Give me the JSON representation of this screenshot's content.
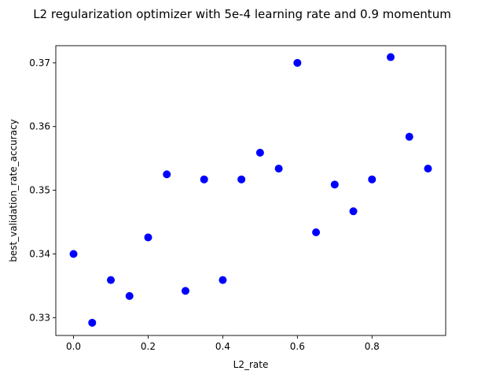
{
  "chart_data": {
    "type": "scatter",
    "title": "L2 regularization optimizer with 5e-4 learning rate and 0.9 momentum",
    "xlabel": "L2_rate",
    "ylabel": "best_validation_rate_accuracy",
    "xlim": [
      -0.0475,
      0.9975
    ],
    "ylim": [
      0.3272,
      0.3727
    ],
    "xticks": [
      0.0,
      0.2,
      0.4,
      0.6,
      0.8
    ],
    "xtick_labels": [
      "0.0",
      "0.2",
      "0.4",
      "0.6",
      "0.8"
    ],
    "yticks": [
      0.33,
      0.34,
      0.35,
      0.36,
      0.37
    ],
    "ytick_labels": [
      "0.33",
      "0.34",
      "0.35",
      "0.36",
      "0.37"
    ],
    "grid": false,
    "marker_color": "#0000ff",
    "points": [
      {
        "x": 0.0,
        "y": 0.34
      },
      {
        "x": 0.05,
        "y": 0.3292
      },
      {
        "x": 0.1,
        "y": 0.3359
      },
      {
        "x": 0.15,
        "y": 0.3334
      },
      {
        "x": 0.2,
        "y": 0.3426
      },
      {
        "x": 0.25,
        "y": 0.3525
      },
      {
        "x": 0.3,
        "y": 0.3342
      },
      {
        "x": 0.35,
        "y": 0.3517
      },
      {
        "x": 0.4,
        "y": 0.3359
      },
      {
        "x": 0.45,
        "y": 0.3517
      },
      {
        "x": 0.5,
        "y": 0.3559
      },
      {
        "x": 0.55,
        "y": 0.3534
      },
      {
        "x": 0.6,
        "y": 0.37
      },
      {
        "x": 0.65,
        "y": 0.3434
      },
      {
        "x": 0.7,
        "y": 0.3509
      },
      {
        "x": 0.75,
        "y": 0.3467
      },
      {
        "x": 0.8,
        "y": 0.3517
      },
      {
        "x": 0.85,
        "y": 0.3709
      },
      {
        "x": 0.9,
        "y": 0.3584
      },
      {
        "x": 0.95,
        "y": 0.3534
      }
    ]
  }
}
